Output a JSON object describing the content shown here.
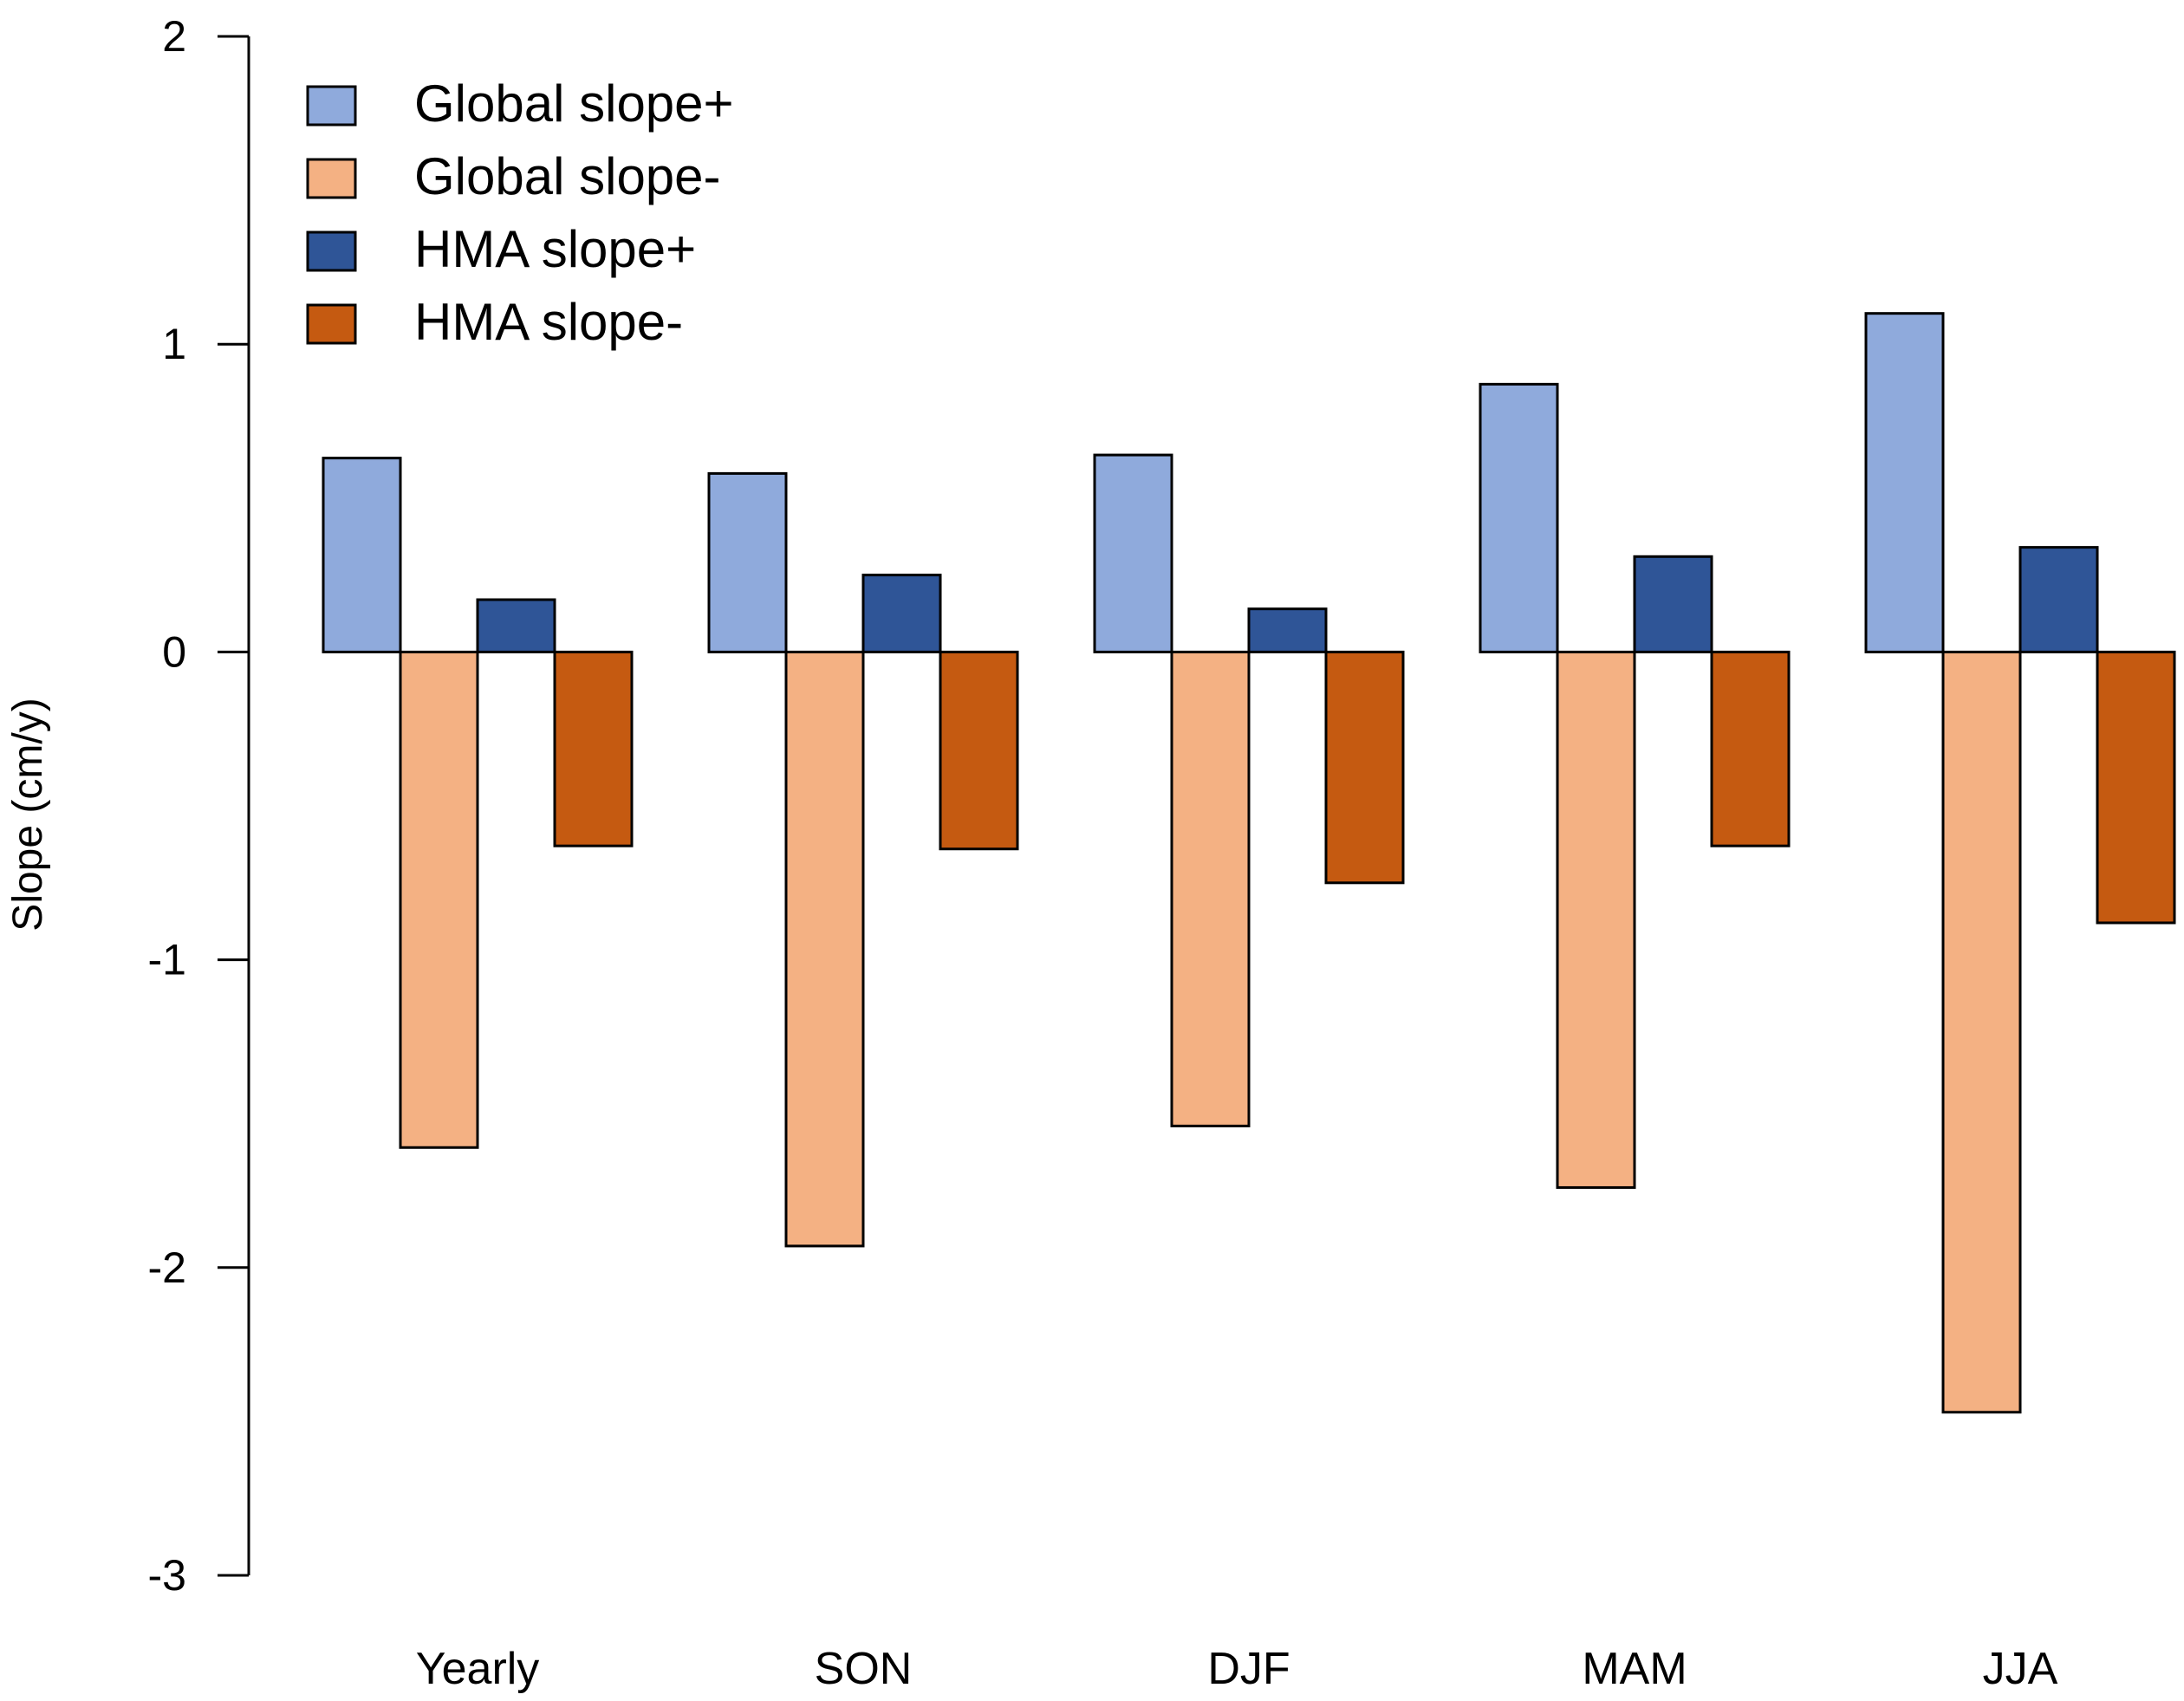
{
  "chart_data": {
    "type": "bar",
    "ylabel": "Slope (cm/y)",
    "ylim": [
      -3,
      2
    ],
    "yticks": [
      -3,
      -2,
      -1,
      0,
      1,
      2
    ],
    "categories": [
      "Yearly",
      "SON",
      "DJF",
      "MAM",
      "JJA"
    ],
    "series": [
      {
        "name": "Global slope+",
        "color": "#8faadc",
        "values": [
          0.63,
          0.58,
          0.64,
          0.87,
          1.1
        ]
      },
      {
        "name": "Global slope-",
        "color": "#f4b183",
        "values": [
          -1.61,
          -1.93,
          -1.54,
          -1.74,
          -2.47
        ]
      },
      {
        "name": "HMA slope+",
        "color": "#2f5597",
        "values": [
          0.17,
          0.25,
          0.14,
          0.31,
          0.34
        ]
      },
      {
        "name": "HMA slope-",
        "color": "#c55a11",
        "values": [
          -0.63,
          -0.64,
          -0.75,
          -0.63,
          -0.88
        ]
      }
    ],
    "legend_position": "top-left",
    "grid": false
  }
}
